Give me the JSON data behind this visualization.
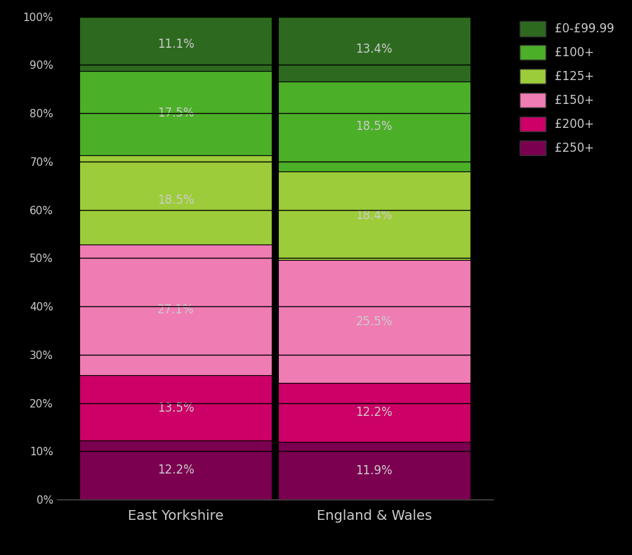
{
  "categories": [
    "East Yorkshire",
    "England & Wales"
  ],
  "segments": [
    {
      "label": "£250+",
      "color": "#7B0050",
      "values": [
        12.2,
        11.9
      ]
    },
    {
      "label": "£200+",
      "color": "#CC0066",
      "values": [
        13.5,
        12.2
      ]
    },
    {
      "label": "£150+",
      "color": "#F07CB4",
      "values": [
        27.1,
        25.5
      ]
    },
    {
      "label": "£125+",
      "color": "#9DC E3A",
      "values": [
        18.5,
        18.4
      ]
    },
    {
      "label": "£100+",
      "color": "#4CAF28",
      "values": [
        17.5,
        18.5
      ]
    },
    {
      "label": "£0-£99.99",
      "color": "#2D6A1F",
      "values": [
        11.1,
        13.4
      ]
    }
  ],
  "background_color": "#000000",
  "text_color": "#cccccc",
  "ylim": [
    0,
    100
  ],
  "ytick_labels": [
    "0%",
    "10%",
    "20%",
    "30%",
    "40%",
    "50%",
    "60%",
    "70%",
    "80%",
    "90%",
    "100%"
  ],
  "ytick_values": [
    0,
    10,
    20,
    30,
    40,
    50,
    60,
    70,
    80,
    90,
    100
  ],
  "legend_labels": [
    "£0-£99.99",
    "£100+",
    "£125+",
    "£150+",
    "£200+",
    "£250+"
  ],
  "legend_colors": [
    "#2D6A1F",
    "#4CAF28",
    "#9DCC3A",
    "#F07CB4",
    "#CC0066",
    "#7B0050"
  ],
  "label_fontsize": 12,
  "tick_fontsize": 11,
  "legend_fontsize": 12,
  "xlabel_fontsize": 14
}
